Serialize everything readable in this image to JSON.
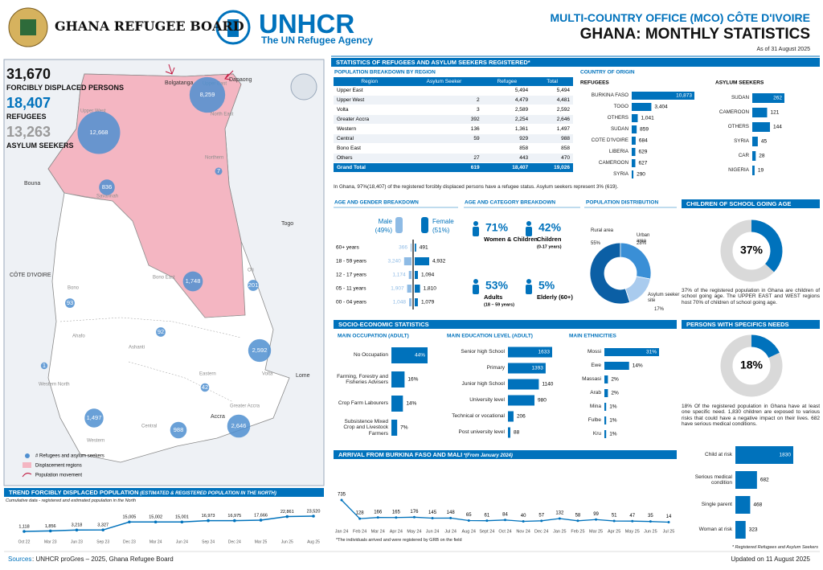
{
  "header": {
    "org1": "GHANA REFUGEE BOARD",
    "org2": "UNHCR",
    "org2_sub": "The UN Refugee Agency",
    "office": "MULTI-COUNTRY OFFICE (MCO) CÔTE D'IVOIRE",
    "title": "GHANA: MONTHLY STATISTICS",
    "date": "As of 31 August 2025"
  },
  "summary": [
    {
      "value": "31,670",
      "label": "FORCIBLY DISPLACED PERSONS"
    },
    {
      "value": "18,407",
      "label": "REFUGEES"
    },
    {
      "value": "13,263",
      "label": "ASYLUM SEEKERS"
    }
  ],
  "map": {
    "places": [
      "Bolgatanga",
      "Dapaong",
      "Bouna",
      "CÔTE D'IVOIRE",
      "Togo",
      "Lome",
      "Accra"
    ],
    "regions": [
      {
        "name": "Upper East",
        "count": 8259,
        "count_label": "8,259"
      },
      {
        "name": "Upper West",
        "count": 12668,
        "count_label": "12,668"
      },
      {
        "name": "Savannah",
        "count": 836,
        "count_label": "836"
      },
      {
        "name": "Northern",
        "count": 7,
        "count_label": "7"
      },
      {
        "name": "Bono East",
        "count": 1748,
        "count_label": "1,748"
      },
      {
        "name": "Oti",
        "count": 201,
        "count_label": "201"
      },
      {
        "name": "Bono",
        "count": 93,
        "count_label": "93"
      },
      {
        "name": "Ashanti",
        "count": 92,
        "count_label": "92"
      },
      {
        "name": "Western North",
        "count": 1,
        "count_label": "1"
      },
      {
        "name": "Volta",
        "count": 2592,
        "count_label": "2,592"
      },
      {
        "name": "Eastern",
        "count": 42,
        "count_label": "42"
      },
      {
        "name": "Western",
        "count": 1497,
        "count_label": "1,497"
      },
      {
        "name": "Central",
        "count": 988,
        "count_label": "988"
      },
      {
        "name": "Greater Accra",
        "count": 2646,
        "count_label": "2,646"
      }
    ],
    "other_regions": [
      "North East",
      "Ahafo"
    ],
    "legend": [
      "# Refugees and asylum seekers",
      "Displacement regions",
      "Population movement"
    ]
  },
  "stats_title": "STATISTICS OF REFUGEES AND ASYLUM SEEKERS REGISTERED*",
  "table": {
    "title": "POPULATION BREAKDOWN BY REGION",
    "columns": [
      "Region",
      "Asylum Seeker",
      "Refugee",
      "Total"
    ],
    "rows": [
      [
        "Upper East",
        null,
        "5,494",
        "5,494"
      ],
      [
        "Upper West",
        "2",
        "4,479",
        "4,481"
      ],
      [
        "Volta",
        "3",
        "2,589",
        "2,592"
      ],
      [
        "Greater Accra",
        "392",
        "2,254",
        "2,646"
      ],
      [
        "Western",
        "136",
        "1,361",
        "1,497"
      ],
      [
        "Central",
        "59",
        "929",
        "988"
      ],
      [
        "Bono East",
        null,
        "858",
        "858"
      ],
      [
        "Others",
        "27",
        "443",
        "470"
      ]
    ],
    "total": [
      "Grand Total",
      "619",
      "18,407",
      "19,026"
    ],
    "note": "In Ghana, 97%(18,407) of the registered forcibly displaced persons have a refugee status. Asylum seekers represent 3% (619)."
  },
  "origin": {
    "title": "COUNTRY OF ORIGIN",
    "refugees": {
      "title": "REFUGEES",
      "categories": [
        "BURKINA FASO",
        "TOGO",
        "OTHERS",
        "SUDAN",
        "COTE D'IVOIRE",
        "LIBERIA",
        "CAMEROON",
        "SYRIA"
      ],
      "values": [
        10873,
        3404,
        1041,
        859,
        684,
        629,
        627,
        290
      ],
      "value_labels": [
        "10,873",
        "3,404",
        "1,041",
        "859",
        "684",
        "629",
        "627",
        "290"
      ]
    },
    "asylum": {
      "title": "ASYLUM SEEKERS",
      "categories": [
        "SUDAN",
        "CAMEROON",
        "OTHERS",
        "SYRIA",
        "CAR",
        "NIGERIA"
      ],
      "values": [
        262,
        121,
        144,
        45,
        28,
        19
      ]
    }
  },
  "age_gender": {
    "title": "AGE AND GENDER BREAKDOWN",
    "male": "Male",
    "male_share": "(49%)",
    "female": "Female",
    "female_share": "(51%)",
    "categories": [
      "60+ years",
      "18 - 59 years",
      "12 - 17 years",
      "05 - 11 years",
      "00 - 04 years"
    ],
    "male_values": [
      366,
      3240,
      1174,
      1907,
      1048
    ],
    "male_labels": [
      "366",
      "3,240",
      "1,174",
      "1,907",
      "1,048"
    ],
    "female_values": [
      491,
      4932,
      1094,
      1810,
      1079
    ],
    "female_labels": [
      "491",
      "4,932",
      "1,094",
      "1,810",
      "1,079"
    ]
  },
  "age_category": {
    "title": "AGE AND CATEGORY BREAKDOWN",
    "items": [
      {
        "value": "71%",
        "label": "Women & Children"
      },
      {
        "value": "42%",
        "label": "Children",
        "sub": "(0-17 years)"
      },
      {
        "value": "53%",
        "label": "Adults",
        "sub": "(18 – 59 years)"
      },
      {
        "value": "5%",
        "label": "Elderly (60+)"
      }
    ]
  },
  "distribution": {
    "title": "POPULATION DISTRIBUTION",
    "categories": [
      "Rural area",
      "Urban area",
      "Asylum seeker site"
    ],
    "values": [
      55,
      28,
      17
    ],
    "value_labels": [
      "55%",
      "28%",
      "17%"
    ],
    "colors": [
      "#0b5fa5",
      "#3a8fd6",
      "#a9cbee"
    ]
  },
  "school": {
    "title": "CHILDREN OF SCHOOL GOING AGE",
    "value": 37,
    "value_label": "37%",
    "text": "37% of the registered population in Ghana are children of school going age. The UPPER EAST and WEST regions host 70% of children of school going age."
  },
  "needs": {
    "title": "PERSONS WITH SPECIFICS NEEDS",
    "value": 18,
    "value_label": "18%",
    "text": "18% Of the registered population in Ghana have at least one specific need. 1,830 children are exposed to various risks that could have a negative impact on their lives. 682 have serious medical conditions.",
    "categories": [
      "Child at risk",
      "Serious medical condition",
      "Single parent",
      "Woman at risk"
    ],
    "values": [
      1830,
      682,
      468,
      323
    ],
    "footnote": "* Registered Refugees and Asylum Seekers"
  },
  "socio": {
    "title": "SOCIO-ECONOMIC STATISTICS",
    "occupation": {
      "title": "MAIN OCCUPATION (ADULT)",
      "categories": [
        "No Occupation",
        "Farming, Forestry and Fisheries Advisers",
        "Crop Farm Labourers",
        "Subsistence Mixed Crop and Livestock Farmers"
      ],
      "values": [
        44,
        16,
        14,
        7
      ],
      "value_labels": [
        "44%",
        "16%",
        "14%",
        "7%"
      ]
    },
    "education": {
      "title": "MAIN EDUCATION LEVEL (ADULT)",
      "categories": [
        "Senior high School",
        "Primary",
        "Junior high School",
        "University level",
        "Technical or vocational",
        "Post university level"
      ],
      "values": [
        1633,
        1393,
        1140,
        980,
        206,
        88
      ]
    },
    "ethnicity": {
      "title": "MAIN ETHNICITIES",
      "categories": [
        "Mossi",
        "Ewe",
        "Massasi",
        "Arab",
        "Mina",
        "Fulbe",
        "Kru"
      ],
      "values": [
        31,
        14,
        2,
        2,
        1,
        1,
        1
      ],
      "value_labels": [
        "31%",
        "14%",
        "2%",
        "2%",
        "1%",
        "1%",
        "1%"
      ]
    }
  },
  "arrival": {
    "title": "ARRIVAL FROM BURKINA FASO AND MALI",
    "subtitle": "*(From January 2024)",
    "categories": [
      "Jan 24",
      "Feb 24",
      "Mar 24",
      "Apr 24",
      "May 24",
      "Jun 24",
      "Jul 24",
      "Aug 24",
      "Sept 24",
      "Oct 24",
      "Nov 24",
      "Dec 24",
      "Jan 25",
      "Feb 25",
      "Mar 25",
      "Apr 25",
      "May 25",
      "Jun 25",
      "Jul 25"
    ],
    "values": [
      735,
      128,
      166,
      165,
      176,
      145,
      148,
      65,
      61,
      84,
      40,
      57,
      132,
      58,
      99,
      51,
      47,
      35,
      14
    ],
    "note": "*The individuals arrived and were registered by GRB on the field"
  },
  "trend": {
    "title": "TREND FORCIBLY DISPLACED POPULATION",
    "subtitle": "(ESTIMATED & REGISTERED POPULATION IN THE NORTH)",
    "note": "Cumulative data - registered and estimated population in the North",
    "categories": [
      "Oct 22",
      "Mar 23",
      "Jun 23",
      "Sep 23",
      "Dec 23",
      "Mar 24",
      "Jun 24",
      "Sep 24",
      "Dec 24",
      "Mar 25",
      "Jun 25",
      "Aug 25"
    ],
    "values": [
      1118,
      1856,
      3218,
      3327,
      15005,
      15002,
      15001,
      16973,
      16975,
      17666,
      22861,
      23520
    ],
    "value_labels": [
      "1,118",
      "1,856",
      "3,218",
      "3,327",
      "15,005",
      "15,002",
      "15,001",
      "16,973",
      "16,975",
      "17,666",
      "22,861",
      "23,520"
    ]
  },
  "footer": {
    "sources_label": "Sources",
    "sources": ": UNHCR proGres – 2025, Ghana Refugee Board",
    "updated": "Updated on 11 August 2025"
  }
}
